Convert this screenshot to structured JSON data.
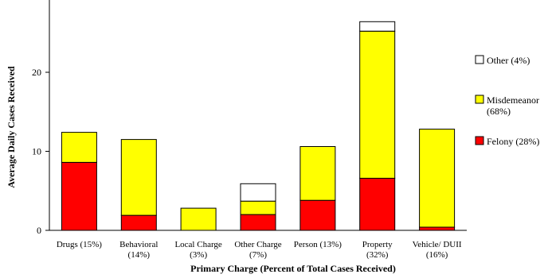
{
  "chart_data": {
    "type": "bar",
    "stacked": true,
    "title": "",
    "xlabel": "Primary Charge (Percent of Total Cases Received)",
    "ylabel": "Average Daily Cases Received",
    "ylim": [
      0,
      30
    ],
    "yticks": [
      0,
      10,
      20
    ],
    "grid": false,
    "legend_position": "right",
    "categories": [
      [
        "Drugs (15%)"
      ],
      [
        "Behavioral",
        "(14%)"
      ],
      [
        "Local Charge",
        "(3%)"
      ],
      [
        "Other Charge",
        "(7%)"
      ],
      [
        "Person (13%)"
      ],
      [
        "Property",
        "(32%)"
      ],
      [
        "Vehicle/ DUII",
        "(16%)"
      ]
    ],
    "series": [
      {
        "name": "Felony (28%)",
        "color": "#ff0000",
        "values": [
          8.6,
          1.9,
          0.0,
          2.0,
          3.8,
          6.6,
          0.4
        ]
      },
      {
        "name": "Misdemeanor (68%)",
        "color": "#ffff00",
        "values": [
          3.8,
          9.6,
          2.8,
          1.7,
          6.8,
          18.6,
          12.4
        ]
      },
      {
        "name": "Other (4%)",
        "color": "#ffffff",
        "values": [
          0.0,
          0.0,
          0.0,
          2.2,
          0.0,
          1.2,
          0.0
        ]
      }
    ],
    "legend": [
      {
        "label": [
          "Other (4%)"
        ],
        "color": "#ffffff"
      },
      {
        "label": [
          "Misdemeanor",
          "(68%)"
        ],
        "color": "#ffff00"
      },
      {
        "label": [
          "Felony (28%)"
        ],
        "color": "#ff0000"
      }
    ]
  }
}
